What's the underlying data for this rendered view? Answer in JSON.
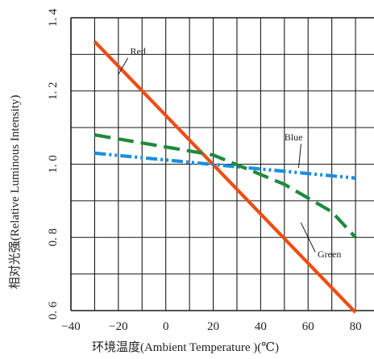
{
  "chart_data": {
    "type": "line",
    "xlabel": "环境温度(Ambient  Temperature )(℃)",
    "ylabel": "相对光强(Relative  Luminous  Intensity)",
    "xlim": [
      -40,
      80
    ],
    "ylim": [
      0.6,
      1.4
    ],
    "x_ticks": [
      "−40",
      "−20",
      "0",
      "20",
      "40",
      "60",
      "80"
    ],
    "y_ticks": [
      "0. 6",
      "0. 8",
      "1. 0",
      "1. 2",
      "1. 4"
    ],
    "grid": true,
    "series": [
      {
        "name": "Red",
        "color": "#ee4d14",
        "style": "solid",
        "x": [
          -30,
          80
        ],
        "y": [
          1.335,
          0.595
        ]
      },
      {
        "name": "Blue",
        "color": "#1a8fe0",
        "style": "dash-dot-dot",
        "x": [
          -30,
          80
        ],
        "y": [
          1.03,
          0.962
        ]
      },
      {
        "name": "Green",
        "color": "#1e8a3c",
        "style": "dashed",
        "x": [
          -30,
          20,
          50,
          70,
          80
        ],
        "y": [
          1.08,
          1.025,
          0.945,
          0.87,
          0.8
        ]
      }
    ]
  }
}
